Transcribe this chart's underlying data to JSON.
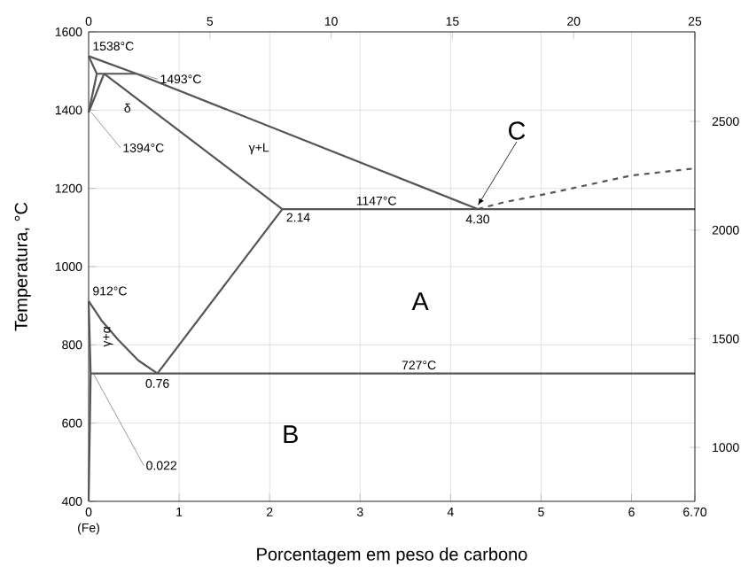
{
  "chart_data": {
    "type": "line",
    "xlabel": "Porcentagem em peso de carbono",
    "ylabel": "Temperatura, °C",
    "xlim": [
      0,
      6.7
    ],
    "ylim": [
      400,
      1600
    ],
    "xticks": [
      0,
      1,
      2,
      3,
      4,
      5,
      6,
      {
        "value": 6.7,
        "label": "6.70"
      }
    ],
    "yticks": [
      400,
      600,
      800,
      1000,
      1200,
      1400,
      1600
    ],
    "x2lim": [
      0,
      25
    ],
    "x2ticks": [
      0,
      5,
      10,
      15,
      20,
      25
    ],
    "y2lim": [
      752,
      2912
    ],
    "y2ticks": [
      1000,
      1500,
      2000,
      2500
    ],
    "grid": true,
    "series": [
      {
        "color": "#555555",
        "x": [
          0,
          0.53,
          4.3
        ],
        "values": [
          1538,
          1493,
          1147
        ]
      },
      {
        "color": "#555555",
        "x": [
          0,
          0.09
        ],
        "values": [
          1538,
          1493
        ]
      },
      {
        "color": "#555555",
        "x": [
          0.09,
          0.53
        ],
        "values": [
          1493,
          1493
        ]
      },
      {
        "color": "#555555",
        "x": [
          0.09,
          0
        ],
        "values": [
          1493,
          1394
        ]
      },
      {
        "color": "#555555",
        "x": [
          0.17,
          0
        ],
        "values": [
          1493,
          1394
        ]
      },
      {
        "color": "#555555",
        "x": [
          0.17,
          2.14
        ],
        "values": [
          1493,
          1147
        ]
      },
      {
        "color": "#555555",
        "x": [
          2.14,
          6.7
        ],
        "values": [
          1147,
          1147
        ]
      },
      {
        "color": "#555555",
        "x": [
          0.76,
          2.14
        ],
        "values": [
          727,
          1147
        ]
      },
      {
        "color": "#555555",
        "x": [
          0,
          0.15,
          0.33,
          0.55,
          0.76
        ],
        "values": [
          912,
          860,
          812,
          760,
          727
        ]
      },
      {
        "color": "#555555",
        "x": [
          0.022,
          6.7
        ],
        "values": [
          727,
          727
        ]
      },
      {
        "color": "#555555",
        "x": [
          0,
          0.022,
          0
        ],
        "values": [
          912,
          727,
          400
        ]
      },
      {
        "color": "#555555",
        "line_style": "dashed",
        "x": [
          4.3,
          4.6,
          5,
          6,
          6.7
        ],
        "values": [
          1147,
          1165,
          1183,
          1233,
          1251
        ]
      }
    ],
    "annotations": [
      {
        "text": "1538°C",
        "x": 0,
        "y": 1538
      },
      {
        "text": "1493°C",
        "x": 0.53,
        "y": 1493
      },
      "δ",
      {
        "text": "1394°C",
        "x": 0,
        "y": 1394
      },
      "γ+L",
      {
        "text": "1147°C",
        "x": 3.18,
        "y": 1147
      },
      {
        "text": "2.14",
        "x": 2.14,
        "y": 1147
      },
      {
        "text": "4.30",
        "x": 4.3,
        "y": 1147
      },
      {
        "text": "912°C",
        "x": 0,
        "y": 912
      },
      "γ+α",
      {
        "text": "0.76",
        "x": 0.76,
        "y": 727
      },
      {
        "text": "0.022",
        "x": 0.022,
        "y": 727
      },
      {
        "text": "727°C",
        "x": 3.65,
        "y": 727
      },
      {
        "text": "(Fe)",
        "x": 0,
        "y": 400
      },
      "A",
      "B",
      {
        "text": "C",
        "x": 4.3,
        "y": 1147
      }
    ]
  }
}
